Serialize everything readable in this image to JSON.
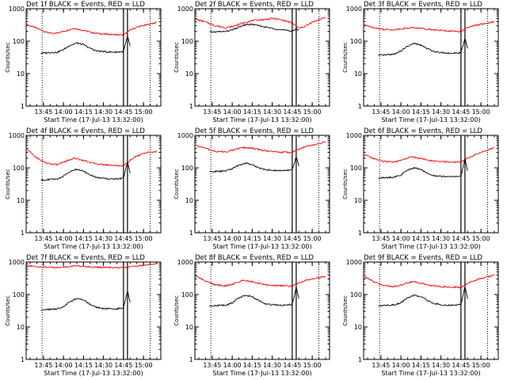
{
  "chart_data": [
    {
      "type": "line",
      "title": "Det 1f BLACK = Events, RED = LLD",
      "xlabel": "Start Time (17-Jul-13 13:32:00)",
      "ylabel": "Counts/sec",
      "xscale": "linear",
      "yscale": "log",
      "xlim": [
        "13:32",
        "15:13"
      ],
      "ylim": [
        1,
        1000
      ],
      "x_ticks": [
        "13:45",
        "14:00",
        "14:15",
        "14:30",
        "14:45",
        "15:00"
      ],
      "y_ticks": [
        "1",
        "10",
        "100",
        "1000"
      ],
      "markers": {
        "dotted_vertical": [
          "13:44",
          "15:05"
        ],
        "solid_vertical": [
          "14:45",
          "14:48"
        ]
      },
      "series": [
        {
          "color": "#ff0000",
          "x": [
            "13:32",
            "13:40",
            "13:47",
            "13:52",
            "14:00",
            "14:08",
            "14:15",
            "14:22",
            "14:30",
            "14:37",
            "14:44",
            "14:45",
            "14:50",
            "14:55",
            "15:00",
            "15:05",
            "15:10"
          ],
          "y": [
            330,
            250,
            190,
            170,
            200,
            250,
            215,
            180,
            165,
            160,
            155,
            155,
            220,
            270,
            300,
            340,
            380
          ]
        },
        {
          "color": "#000000",
          "x": [
            "13:43",
            "13:50",
            "13:55",
            "14:00",
            "14:05",
            "14:10",
            "14:15",
            "14:20",
            "14:25",
            "14:30",
            "14:35",
            "14:40",
            "14:45",
            "14:48",
            "14:50"
          ],
          "y": [
            42,
            45,
            45,
            55,
            75,
            88,
            78,
            60,
            50,
            48,
            46,
            46,
            48,
            140,
            70
          ]
        }
      ]
    },
    {
      "type": "line",
      "title": "Det 2f BLACK = Events, RED = LLD",
      "xlabel": "Start Time (17-Jul-13 13:32:00)",
      "ylabel": "Counts/sec",
      "xscale": "linear",
      "yscale": "log",
      "xlim": [
        "13:32",
        "15:13"
      ],
      "ylim": [
        1,
        1000
      ],
      "x_ticks": [
        "13:45",
        "14:00",
        "14:15",
        "14:30",
        "14:45",
        "15:00"
      ],
      "y_ticks": [
        "1",
        "10",
        "100",
        "1000"
      ],
      "markers": {
        "dotted_vertical": [
          "13:44",
          "15:05"
        ],
        "solid_vertical": [
          "14:45",
          "14:48"
        ]
      },
      "series": [
        {
          "color": "#ff0000",
          "x": [
            "13:32",
            "13:40",
            "13:47",
            "13:55",
            "14:00",
            "14:05",
            "14:10",
            "14:15",
            "14:20",
            "14:25",
            "14:30",
            "14:35",
            "14:40",
            "14:45",
            "14:50",
            "14:55",
            "15:00",
            "15:05",
            "15:10"
          ],
          "y": [
            480,
            390,
            300,
            260,
            280,
            330,
            380,
            430,
            450,
            470,
            500,
            470,
            420,
            360,
            250,
            290,
            380,
            460,
            540
          ]
        },
        {
          "color": "#000000",
          "x": [
            "13:43",
            "13:50",
            "13:55",
            "14:00",
            "14:05",
            "14:10",
            "14:15",
            "14:20",
            "14:25",
            "14:30",
            "14:35",
            "14:40",
            "14:45",
            "14:48",
            "14:50"
          ],
          "y": [
            190,
            195,
            200,
            220,
            270,
            320,
            330,
            300,
            270,
            250,
            230,
            215,
            205,
            240,
            210
          ]
        }
      ]
    },
    {
      "type": "line",
      "title": "Det 3f BLACK = Events, RED = LLD",
      "xlabel": "Start Time (17-Jul-13 13:32:00)",
      "ylabel": "Counts/sec",
      "xscale": "linear",
      "yscale": "log",
      "xlim": [
        "13:32",
        "15:13"
      ],
      "ylim": [
        1,
        1000
      ],
      "x_ticks": [
        "13:45",
        "14:00",
        "14:15",
        "14:30",
        "14:45",
        "15:00"
      ],
      "y_ticks": [
        "1",
        "10",
        "100",
        "1000"
      ],
      "markers": {
        "dotted_vertical": [
          "13:44",
          "15:05"
        ],
        "solid_vertical": [
          "14:45",
          "14:48"
        ]
      },
      "series": [
        {
          "color": "#ff0000",
          "x": [
            "13:32",
            "13:40",
            "13:47",
            "13:55",
            "14:00",
            "14:08",
            "14:15",
            "14:22",
            "14:30",
            "14:37",
            "14:44",
            "14:45",
            "14:50",
            "14:55",
            "15:00",
            "15:05",
            "15:10"
          ],
          "y": [
            320,
            260,
            230,
            225,
            240,
            260,
            250,
            230,
            215,
            205,
            200,
            200,
            260,
            300,
            330,
            360,
            400
          ]
        },
        {
          "color": "#000000",
          "x": [
            "13:43",
            "13:50",
            "13:55",
            "14:00",
            "14:05",
            "14:10",
            "14:15",
            "14:20",
            "14:25",
            "14:30",
            "14:35",
            "14:40",
            "14:45",
            "14:48",
            "14:50"
          ],
          "y": [
            36,
            38,
            40,
            50,
            70,
            85,
            75,
            58,
            48,
            45,
            43,
            42,
            45,
            120,
            60
          ]
        }
      ]
    },
    {
      "type": "line",
      "title": "Det 4f BLACK = Events, RED = LLD",
      "xlabel": "Start Time (17-Jul-13 13:32:00)",
      "ylabel": "Counts/sec",
      "xscale": "linear",
      "yscale": "log",
      "xlim": [
        "13:32",
        "15:13"
      ],
      "ylim": [
        1,
        1000
      ],
      "x_ticks": [
        "13:45",
        "14:00",
        "14:15",
        "14:30",
        "14:45",
        "15:00"
      ],
      "y_ticks": [
        "1",
        "10",
        "100",
        "1000"
      ],
      "markers": {
        "dotted_vertical": [
          "13:44",
          "15:05"
        ],
        "solid_vertical": [
          "14:45",
          "14:48"
        ]
      },
      "series": [
        {
          "color": "#ff0000",
          "x": [
            "13:32",
            "13:40",
            "13:47",
            "13:55",
            "14:00",
            "14:08",
            "14:15",
            "14:22",
            "14:30",
            "14:37",
            "14:44",
            "14:45",
            "14:50",
            "14:55",
            "15:00",
            "15:05",
            "15:10"
          ],
          "y": [
            400,
            200,
            140,
            125,
            150,
            200,
            170,
            140,
            125,
            120,
            115,
            115,
            170,
            230,
            280,
            300,
            320
          ]
        },
        {
          "color": "#000000",
          "x": [
            "13:43",
            "13:50",
            "13:55",
            "14:00",
            "14:05",
            "14:10",
            "14:15",
            "14:20",
            "14:25",
            "14:30",
            "14:35",
            "14:40",
            "14:45",
            "14:48",
            "14:50"
          ],
          "y": [
            42,
            44,
            45,
            55,
            78,
            90,
            80,
            60,
            50,
            48,
            46,
            45,
            48,
            150,
            70
          ]
        }
      ]
    },
    {
      "type": "line",
      "title": "Det 5f BLACK = Events, RED = LLD",
      "xlabel": "Start Time (17-Jul-13 13:32:00)",
      "ylabel": "Counts/sec",
      "xscale": "linear",
      "yscale": "log",
      "xlim": [
        "13:32",
        "15:13"
      ],
      "ylim": [
        1,
        1000
      ],
      "x_ticks": [
        "13:45",
        "14:00",
        "14:15",
        "14:30",
        "14:45",
        "15:00"
      ],
      "y_ticks": [
        "1",
        "10",
        "100",
        "1000"
      ],
      "markers": {
        "dotted_vertical": [
          "13:44",
          "15:05"
        ],
        "solid_vertical": [
          "14:45",
          "14:48"
        ]
      },
      "series": [
        {
          "color": "#ff0000",
          "x": [
            "13:32",
            "13:40",
            "13:47",
            "13:55",
            "14:00",
            "14:08",
            "14:15",
            "14:22",
            "14:30",
            "14:37",
            "14:44",
            "14:45",
            "14:50",
            "14:55",
            "15:00",
            "15:05",
            "15:10"
          ],
          "y": [
            500,
            400,
            320,
            310,
            350,
            420,
            400,
            350,
            320,
            300,
            300,
            300,
            380,
            450,
            500,
            560,
            620
          ]
        },
        {
          "color": "#000000",
          "x": [
            "13:43",
            "13:50",
            "13:55",
            "14:00",
            "14:05",
            "14:10",
            "14:15",
            "14:20",
            "14:25",
            "14:30",
            "14:35",
            "14:40",
            "14:45",
            "14:48",
            "14:50"
          ],
          "y": [
            75,
            78,
            80,
            95,
            120,
            140,
            125,
            100,
            88,
            84,
            82,
            82,
            88,
            220,
            110
          ]
        }
      ]
    },
    {
      "type": "line",
      "title": "Det 6f BLACK = Events, RED = LLD",
      "xlabel": "Start Time (17-Jul-13 13:32:00)",
      "ylabel": "Counts/sec",
      "xscale": "linear",
      "yscale": "log",
      "xlim": [
        "13:32",
        "15:13"
      ],
      "ylim": [
        1,
        1000
      ],
      "x_ticks": [
        "13:45",
        "14:00",
        "14:15",
        "14:30",
        "14:45",
        "15:00"
      ],
      "y_ticks": [
        "1",
        "10",
        "100",
        "1000"
      ],
      "markers": {
        "dotted_vertical": [
          "13:44",
          "15:05"
        ],
        "solid_vertical": [
          "14:45",
          "14:48"
        ]
      },
      "series": [
        {
          "color": "#ff0000",
          "x": [
            "13:32",
            "13:40",
            "13:47",
            "13:55",
            "14:00",
            "14:08",
            "14:15",
            "14:22",
            "14:30",
            "14:37",
            "14:44",
            "14:45",
            "14:50",
            "14:55",
            "15:00",
            "15:05",
            "15:10"
          ],
          "y": [
            260,
            190,
            160,
            150,
            170,
            220,
            195,
            165,
            155,
            150,
            150,
            150,
            200,
            250,
            300,
            350,
            420
          ]
        },
        {
          "color": "#000000",
          "x": [
            "13:43",
            "13:50",
            "13:55",
            "14:00",
            "14:05",
            "14:10",
            "14:15",
            "14:20",
            "14:25",
            "14:30",
            "14:35",
            "14:40",
            "14:45",
            "14:48",
            "14:50"
          ],
          "y": [
            48,
            50,
            52,
            60,
            85,
            100,
            88,
            68,
            57,
            55,
            54,
            53,
            56,
            180,
            80
          ]
        }
      ]
    },
    {
      "type": "line",
      "title": "Det 7f BLACK = Events, RED = LLD",
      "xlabel": "Start Time (17-Jul-13 13:32:00)",
      "ylabel": "Counts/sec",
      "xscale": "linear",
      "yscale": "log",
      "xlim": [
        "13:32",
        "15:13"
      ],
      "ylim": [
        1,
        1000
      ],
      "x_ticks": [
        "13:45",
        "14:00",
        "14:15",
        "14:30",
        "14:45",
        "15:00"
      ],
      "y_ticks": [
        "1",
        "10",
        "100",
        "1000"
      ],
      "markers": {
        "dotted_vertical": [
          "13:44",
          "15:05"
        ],
        "solid_vertical": [
          "14:45",
          "14:48"
        ]
      },
      "series": [
        {
          "color": "#ff0000",
          "x": [
            "13:32",
            "13:40",
            "13:47",
            "13:55",
            "14:00",
            "14:08",
            "14:15",
            "14:22",
            "14:30",
            "14:37",
            "14:44",
            "14:45",
            "14:50",
            "14:55",
            "15:00",
            "15:05",
            "15:10"
          ],
          "y": [
            780,
            720,
            690,
            680,
            700,
            760,
            740,
            700,
            680,
            670,
            670,
            670,
            720,
            760,
            800,
            850,
            900
          ]
        },
        {
          "color": "#000000",
          "x": [
            "13:43",
            "13:50",
            "13:55",
            "14:00",
            "14:05",
            "14:10",
            "14:15",
            "14:20",
            "14:25",
            "14:30",
            "14:35",
            "14:40",
            "14:45",
            "14:48",
            "14:50"
          ],
          "y": [
            33,
            35,
            36,
            42,
            60,
            75,
            68,
            50,
            40,
            37,
            36,
            36,
            40,
            130,
            60
          ]
        }
      ]
    },
    {
      "type": "line",
      "title": "Det 8f BLACK = Events, RED = LLD",
      "xlabel": "Start Time (17-Jul-13 13:32:00)",
      "ylabel": "Counts/sec",
      "xscale": "linear",
      "yscale": "log",
      "xlim": [
        "13:32",
        "15:13"
      ],
      "ylim": [
        1,
        1000
      ],
      "x_ticks": [
        "13:45",
        "14:00",
        "14:15",
        "14:30",
        "14:45",
        "15:00"
      ],
      "y_ticks": [
        "1",
        "10",
        "100",
        "1000"
      ],
      "markers": {
        "dotted_vertical": [
          "13:44",
          "15:05"
        ],
        "solid_vertical": [
          "14:45",
          "14:48"
        ]
      },
      "series": [
        {
          "color": "#ff0000",
          "x": [
            "13:32",
            "13:40",
            "13:47",
            "13:55",
            "14:00",
            "14:08",
            "14:15",
            "14:22",
            "14:30",
            "14:37",
            "14:44",
            "14:45",
            "14:50",
            "14:55",
            "15:00",
            "15:05",
            "15:10"
          ],
          "y": [
            380,
            260,
            200,
            185,
            205,
            280,
            250,
            210,
            190,
            185,
            180,
            180,
            230,
            270,
            300,
            330,
            360
          ]
        },
        {
          "color": "#000000",
          "x": [
            "13:43",
            "13:50",
            "13:55",
            "14:00",
            "14:05",
            "14:10",
            "14:15",
            "14:20",
            "14:25",
            "14:30",
            "14:35",
            "14:40",
            "14:45",
            "14:48",
            "14:50"
          ],
          "y": [
            45,
            46,
            47,
            55,
            80,
            95,
            85,
            65,
            52,
            48,
            47,
            46,
            50,
            160,
            75
          ]
        }
      ]
    },
    {
      "type": "line",
      "title": "Det 9f BLACK = Events, RED = LLD",
      "xlabel": "Start Time (17-Jul-13 13:32:00)",
      "ylabel": "Counts/sec",
      "xscale": "linear",
      "yscale": "log",
      "xlim": [
        "13:32",
        "15:13"
      ],
      "ylim": [
        1,
        1000
      ],
      "x_ticks": [
        "13:45",
        "14:00",
        "14:15",
        "14:30",
        "14:45",
        "15:00"
      ],
      "y_ticks": [
        "1",
        "10",
        "100",
        "1000"
      ],
      "markers": {
        "dotted_vertical": [
          "13:44",
          "15:05"
        ],
        "solid_vertical": [
          "14:45",
          "14:48"
        ]
      },
      "series": [
        {
          "color": "#ff0000",
          "x": [
            "13:32",
            "13:40",
            "13:47",
            "13:55",
            "14:00",
            "14:08",
            "14:15",
            "14:22",
            "14:30",
            "14:37",
            "14:44",
            "14:45",
            "14:50",
            "14:55",
            "15:00",
            "15:05",
            "15:10"
          ],
          "y": [
            370,
            240,
            190,
            175,
            195,
            250,
            225,
            190,
            175,
            170,
            165,
            165,
            220,
            270,
            310,
            350,
            400
          ]
        },
        {
          "color": "#000000",
          "x": [
            "13:43",
            "13:50",
            "13:55",
            "14:00",
            "14:05",
            "14:10",
            "14:15",
            "14:20",
            "14:25",
            "14:30",
            "14:35",
            "14:40",
            "14:45",
            "14:48",
            "14:50"
          ],
          "y": [
            45,
            47,
            48,
            56,
            80,
            95,
            85,
            64,
            52,
            48,
            47,
            46,
            50,
            170,
            75
          ]
        }
      ]
    }
  ]
}
